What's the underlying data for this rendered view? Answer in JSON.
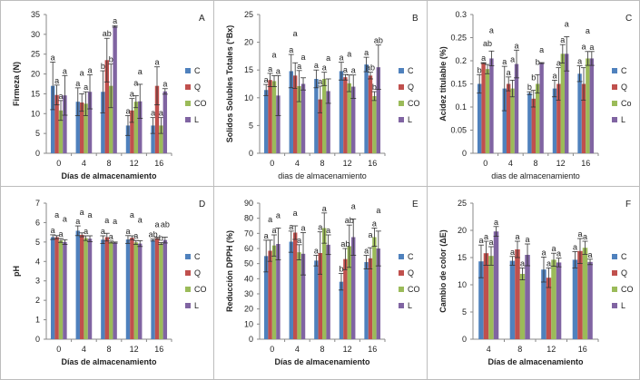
{
  "legend_colors": {
    "C": "#4F81BD",
    "Q": "#C0504D",
    "CO": "#9BBB59",
    "L": "#8064A2"
  },
  "chart_data": [
    {
      "type": "bar",
      "panel_label": "A",
      "ylabel": "Firmeza (N)",
      "xlabel": "Días de almacenamiento",
      "ylim": [
        0,
        35
      ],
      "yticks": [
        "0",
        "5",
        "10",
        "15",
        "20",
        "25",
        "30",
        "35"
      ],
      "categories": [
        "0",
        "4",
        "8",
        "12",
        "16"
      ],
      "series": [
        {
          "name": "C",
          "values": [
            17,
            13,
            15.5,
            7,
            7
          ],
          "errors": [
            6,
            3.5,
            5.3,
            2.5,
            2
          ],
          "letters": [
            "a",
            "a",
            "b",
            "a",
            "a"
          ]
        },
        {
          "name": "Q",
          "values": [
            14.7,
            12.8,
            23.5,
            10.8,
            17
          ],
          "errors": [
            2.5,
            2.2,
            5.5,
            3,
            4.8
          ],
          "letters": [
            "a",
            "a",
            "ab",
            "a",
            "a"
          ]
        },
        {
          "name": "CO",
          "values": [
            10.8,
            12.5,
            17,
            13,
            7
          ],
          "errors": [
            2.5,
            3,
            5.5,
            1.5,
            2
          ],
          "letters": [
            "a",
            "a",
            "b",
            "a",
            "a"
          ]
        },
        {
          "name": "L",
          "values": [
            14.6,
            15.5,
            32,
            13.1,
            15.6
          ],
          "errors": [
            5,
            4.3,
            0.2,
            4.3,
            0.7
          ],
          "letters": [
            "a",
            "a",
            "a",
            "a",
            "a"
          ]
        }
      ]
    },
    {
      "type": "bar",
      "panel_label": "B",
      "ylabel": "Solidos Solubles Totales (°Bx)",
      "xlabel": "dias de almacenamiento",
      "ylim": [
        0,
        25
      ],
      "yticks": [
        "0",
        "5",
        "10",
        "15",
        "20",
        "25"
      ],
      "categories": [
        "0",
        "4",
        "8",
        "12",
        "16"
      ],
      "series": [
        {
          "name": "C",
          "values": [
            11.4,
            14.8,
            13.4,
            14.8,
            16
          ],
          "errors": [
            1,
            3,
            1.6,
            1.6,
            1.3
          ],
          "letters": [
            "a",
            "a",
            "a",
            "a",
            "a"
          ]
        },
        {
          "name": "Q",
          "values": [
            13.2,
            14,
            9.7,
            13.7,
            14
          ],
          "errors": [
            1.2,
            2.3,
            2.4,
            0.5,
            0.6
          ],
          "letters": [
            "a",
            "a",
            "a",
            "a",
            "ab"
          ]
        },
        {
          "name": "CO",
          "values": [
            13,
            12.1,
            13.4,
            12.6,
            10.3
          ],
          "errors": [
            1,
            2.8,
            1.2,
            1.5,
            0.8
          ],
          "letters": [
            "a",
            "a",
            "a",
            "a",
            "b"
          ]
        },
        {
          "name": "L",
          "values": [
            10.4,
            12.5,
            11.2,
            12,
            15.5
          ],
          "errors": [
            3.6,
            1.1,
            2.2,
            2.1,
            4
          ],
          "letters": [
            "a",
            "a",
            "a",
            "a",
            "ab"
          ]
        }
      ]
    },
    {
      "type": "bar",
      "panel_label": "C",
      "ylabel": "Acidez titulable (%)",
      "xlabel": "dias de almacenamiento",
      "ylim": [
        0,
        0.3
      ],
      "yticks": [
        "0",
        "0.05",
        "0.1",
        "0.15",
        "0.2",
        "0.25",
        "0.3"
      ],
      "categories": [
        "0",
        "4",
        "8",
        "12",
        "16"
      ],
      "series": [
        {
          "name": "C",
          "values": [
            0.15,
            0.14,
            0.13,
            0.14,
            0.172
          ],
          "errors": [
            0.02,
            0.048,
            0.003,
            0.018,
            0.017
          ],
          "letters": [
            "b",
            "a",
            "b",
            "a",
            "a"
          ]
        },
        {
          "name": "Q",
          "values": [
            0.195,
            0.15,
            0.118,
            0.15,
            0.15
          ],
          "errors": [
            0.001,
            0.015,
            0.018,
            0.035,
            0.035
          ],
          "letters": [
            "a",
            "a",
            "b",
            "a",
            "a"
          ]
        },
        {
          "name": "Co",
          "values": [
            0.182,
            0.14,
            0.15,
            0.215,
            0.205
          ],
          "errors": [
            0.01,
            0.018,
            0.02,
            0.02,
            0.015
          ],
          "letters": [
            "ab",
            "a",
            "b",
            "a",
            "a"
          ]
        },
        {
          "name": "L",
          "values": [
            0.205,
            0.193,
            0.195,
            0.215,
            0.205
          ],
          "errors": [
            0.016,
            0.03,
            0.001,
            0.037,
            0.015
          ],
          "letters": [
            "a",
            "a",
            "a",
            "a",
            "a"
          ]
        }
      ]
    },
    {
      "type": "bar",
      "panel_label": "D",
      "ylabel": "pH",
      "xlabel": "Días de almacenamiento",
      "ylim": [
        0,
        7
      ],
      "yticks": [
        "0",
        "1",
        "2",
        "3",
        "4",
        "5",
        "6",
        "7"
      ],
      "categories": [
        "0",
        "4",
        "8",
        "12",
        "16"
      ],
      "series": [
        {
          "name": "C",
          "values": [
            5.25,
            5.58,
            5.12,
            5.13,
            5.1
          ],
          "errors": [
            0.12,
            0.25,
            0.2,
            0.2,
            0.05
          ],
          "letters": [
            "a",
            "a",
            "a",
            "a",
            "ab"
          ]
        },
        {
          "name": "Q",
          "values": [
            5.25,
            5.37,
            5.25,
            5.22,
            5.2
          ],
          "errors": [
            0.08,
            0.1,
            0.2,
            0.1,
            0.05
          ],
          "letters": [
            "a",
            "a",
            "a",
            "a",
            "a"
          ]
        },
        {
          "name": "CO",
          "values": [
            5.08,
            5.2,
            5.0,
            4.98,
            4.92
          ],
          "errors": [
            0.1,
            0.12,
            0.05,
            0.1,
            0.05
          ],
          "letters": [
            "a",
            "a",
            "a",
            "a",
            "b"
          ]
        },
        {
          "name": "L",
          "values": [
            5.0,
            5.17,
            4.97,
            4.92,
            5.1
          ],
          "errors": [
            0.12,
            0.15,
            0.03,
            0.15,
            0.15
          ],
          "letters": [
            "a",
            "a",
            "a",
            "a",
            "ab"
          ]
        }
      ]
    },
    {
      "type": "bar",
      "panel_label": "E",
      "ylabel": "Reducción DPPH (%)",
      "xlabel": "Días de almacenamiento",
      "ylim": [
        0,
        90
      ],
      "yticks": [
        "0",
        "10",
        "20",
        "30",
        "40",
        "50",
        "60",
        "70",
        "80",
        "90"
      ],
      "categories": [
        "0",
        "4",
        "8",
        "12",
        "16"
      ],
      "series": [
        {
          "name": "C",
          "values": [
            55,
            64.5,
            52,
            38,
            51
          ],
          "errors": [
            10.5,
            7,
            3.5,
            5.5,
            4.5
          ],
          "letters": [
            "a",
            "a",
            "a",
            "b",
            "a"
          ]
        },
        {
          "name": "Q",
          "values": [
            58.5,
            70.5,
            57,
            53,
            53.5
          ],
          "errors": [
            7,
            4.5,
            14,
            7,
            7
          ],
          "letters": [
            "a",
            "a",
            "a",
            "ab",
            "a"
          ]
        },
        {
          "name": "CO",
          "values": [
            62,
            57.5,
            73.5,
            61.5,
            67.5
          ],
          "errors": [
            7,
            5,
            10,
            14,
            6
          ],
          "letters": [
            "a",
            "a",
            "a",
            "ab",
            "a"
          ]
        },
        {
          "name": "L",
          "values": [
            63,
            56.5,
            62.5,
            67.5,
            60
          ],
          "errors": [
            10.5,
            14,
            6.5,
            12,
            11.5
          ],
          "letters": [
            "a",
            "a",
            "a",
            "a",
            "a"
          ]
        }
      ]
    },
    {
      "type": "bar",
      "panel_label": "F",
      "ylabel": "Cambio de color (ΔE)",
      "xlabel": "Días de almacenamiento",
      "ylim": [
        0,
        25
      ],
      "yticks": [
        "0",
        "5",
        "10",
        "15",
        "20",
        "25"
      ],
      "categories": [
        "4",
        "8",
        "12",
        "16"
      ],
      "series": [
        {
          "name": "C",
          "values": [
            14.3,
            14.4,
            12.8,
            14.6
          ],
          "errors": [
            3,
            0.8,
            2.3,
            1.5
          ],
          "letters": [
            "a",
            "a",
            "a",
            "a"
          ]
        },
        {
          "name": "Q",
          "values": [
            15.8,
            16.5,
            11.3,
            16.2
          ],
          "errors": [
            2.2,
            1.5,
            1.8,
            2.3
          ],
          "letters": [
            "a",
            "a",
            "a",
            "a"
          ]
        },
        {
          "name": "CO",
          "values": [
            15.3,
            12,
            14.6,
            16.8
          ],
          "errors": [
            1.7,
            1.1,
            1.2,
            1.2
          ],
          "letters": [
            "a",
            "a",
            "a",
            "a"
          ]
        },
        {
          "name": "L",
          "values": [
            19.8,
            15.5,
            14.1,
            14.2
          ],
          "errors": [
            0.9,
            2,
            0.8,
            0.5
          ],
          "letters": [
            "a",
            "a",
            "a",
            "a"
          ]
        }
      ]
    }
  ]
}
